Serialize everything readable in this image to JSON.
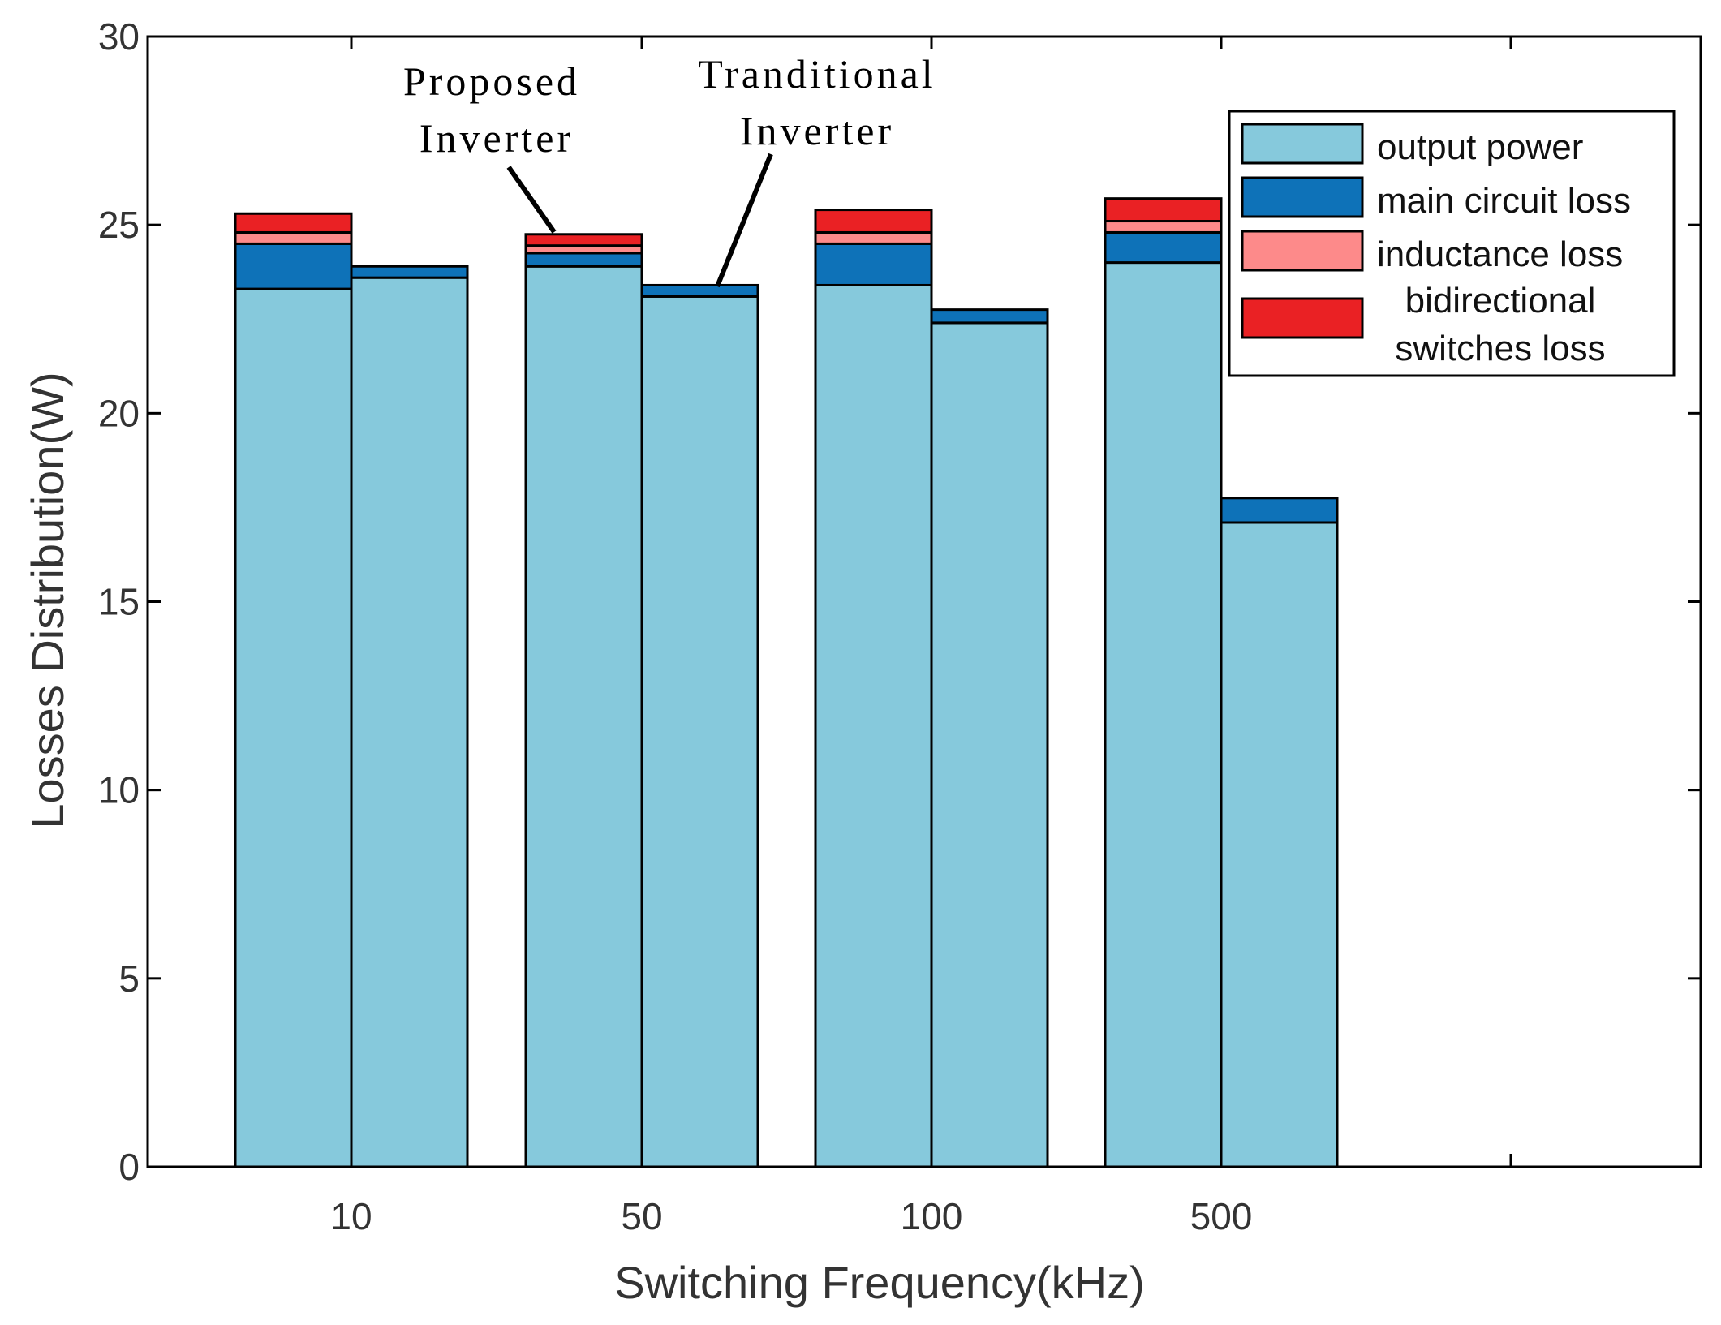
{
  "chart_data": {
    "type": "bar",
    "stacked": true,
    "grouped": true,
    "xlabel": "Switching Frequency(kHz)",
    "ylabel": "Losses Distribution(W)",
    "ylim": [
      0,
      30
    ],
    "yticks": [
      "0",
      "5",
      "10",
      "15",
      "20",
      "25",
      "30"
    ],
    "categories": [
      "10",
      "50",
      "100",
      "500"
    ],
    "groups": [
      "Proposed Inverter",
      "Tranditional Inverter"
    ],
    "series": [
      {
        "name": "output power",
        "color": "#86c9dc",
        "values": {
          "proposed": [
            23.3,
            23.9,
            23.4,
            24.0
          ],
          "traditional": [
            23.6,
            23.1,
            22.4,
            17.1
          ]
        }
      },
      {
        "name": "main circuit loss",
        "color": "#0e72b8",
        "values": {
          "proposed": [
            1.2,
            0.35,
            1.1,
            0.8
          ],
          "traditional": [
            0.3,
            0.3,
            0.35,
            0.65
          ]
        }
      },
      {
        "name": "inductance loss",
        "color": "#fd8a8a",
        "values": {
          "proposed": [
            0.3,
            0.2,
            0.3,
            0.3
          ],
          "traditional": [
            0,
            0,
            0,
            0
          ]
        }
      },
      {
        "name": "bidirectional switches loss",
        "color": "#ea2124",
        "values": {
          "proposed": [
            0.5,
            0.3,
            0.6,
            0.6
          ],
          "traditional": [
            0,
            0,
            0,
            0
          ]
        }
      }
    ],
    "legend": {
      "position": "top-right",
      "entries": [
        "output power",
        "main circuit loss",
        "inductance loss",
        "bidirectional",
        "switches loss"
      ]
    },
    "annotations": {
      "proposed": [
        "Proposed",
        "Inverter"
      ],
      "traditional": [
        "Tranditional",
        "Inverter"
      ]
    }
  }
}
